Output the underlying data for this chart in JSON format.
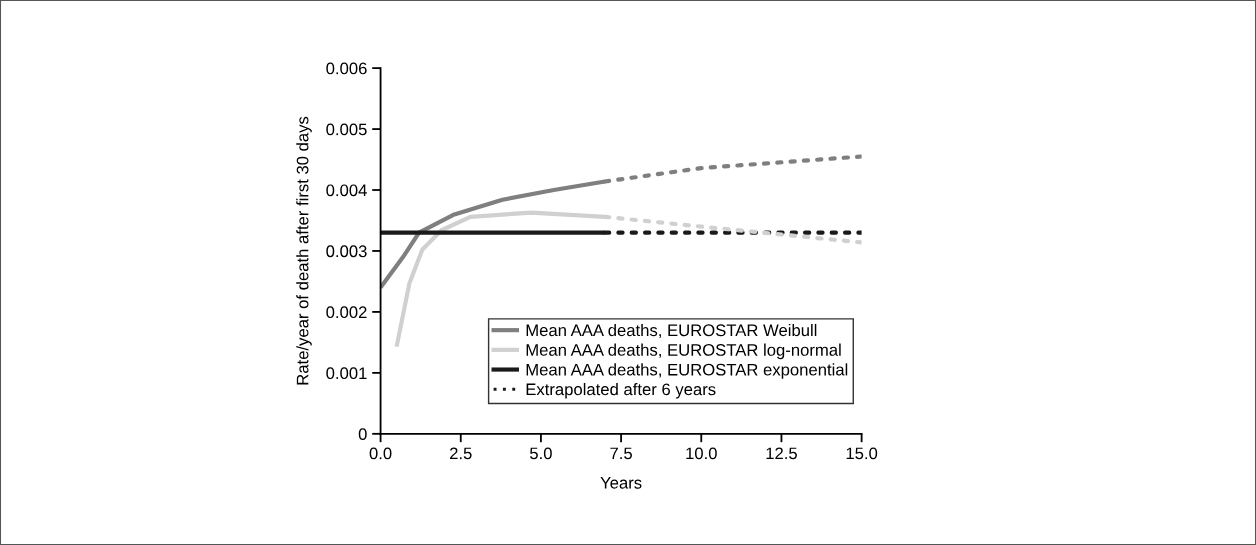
{
  "chart_data": {
    "type": "line",
    "xlabel": "Years",
    "ylabel": "Rate/year of death after first 30 days",
    "xlim": [
      0,
      15
    ],
    "xticks": [
      {
        "value": 0,
        "label": "0.0"
      },
      2.5,
      {
        "value": 5,
        "label": "5.0"
      },
      7.5,
      {
        "value": 10,
        "label": "10.0"
      },
      12.5,
      {
        "value": 15,
        "label": "15.0"
      }
    ],
    "ylim": [
      0,
      0.006
    ],
    "yticks": [
      0,
      0.001,
      0.002,
      0.003,
      0.004,
      0.005,
      0.006
    ],
    "grid": false,
    "legend": "bottom right",
    "marker": "none",
    "series": [
      {
        "name": "Mean AAA deaths, EUROSTAR Weibull",
        "color": "#7f7f7f",
        "line_style": "solid",
        "x": [
          0,
          0.7,
          1.2,
          2.3,
          3.8,
          5.4,
          7.0
        ],
        "values": [
          0.0024,
          0.0029,
          0.0033,
          0.0036,
          0.00384,
          0.004,
          0.00414
        ]
      },
      {
        "name": "Mean AAA deaths, EUROSTAR log-normal",
        "color": "#d0d0d0",
        "line_style": "solid",
        "x": [
          0.5,
          0.9,
          1.3,
          1.9,
          2.8,
          4.7,
          7.0
        ],
        "values": [
          0.00143,
          0.00247,
          0.00302,
          0.00334,
          0.00356,
          0.00363,
          0.00356
        ]
      },
      {
        "name": "Mean AAA deaths, EUROSTAR exponential",
        "color": "#1a1a1a",
        "line_style": "solid",
        "x": [
          0,
          7.0
        ],
        "values": [
          0.0033,
          0.0033
        ]
      },
      {
        "name": "Extrapolated after 6 years",
        "color": "#1a1a1a",
        "line_style": "dotted",
        "x": [
          7.0,
          15
        ],
        "values": [
          0.0033,
          0.0033
        ]
      },
      {
        "color": "#7f7f7f",
        "line_style": "dotted",
        "x": [
          7.0,
          10.0,
          15
        ],
        "values": [
          0.00414,
          0.00436,
          0.00455
        ]
      },
      {
        "color": "#d0d0d0",
        "line_style": "dotted",
        "x": [
          7.0,
          10.0,
          15
        ],
        "values": [
          0.00356,
          0.0034,
          0.00314
        ]
      }
    ]
  }
}
